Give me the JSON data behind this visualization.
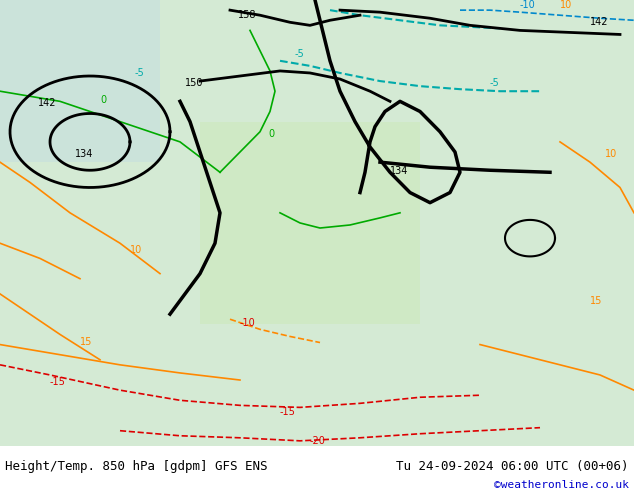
{
  "title_left": "Height/Temp. 850 hPa [gdpm] GFS ENS",
  "title_right": "Tu 24-09-2024 06:00 UTC (00+06)",
  "credit": "©weatheronline.co.uk",
  "bg_color": "#ffffff",
  "map_bg": "#e8f4e8",
  "text_color": "#000000",
  "credit_color": "#0000cc",
  "fig_width": 6.34,
  "fig_height": 4.9,
  "dpi": 100,
  "bottom_bar_color": "#f0f0f0",
  "title_fontsize": 9,
  "credit_fontsize": 8
}
